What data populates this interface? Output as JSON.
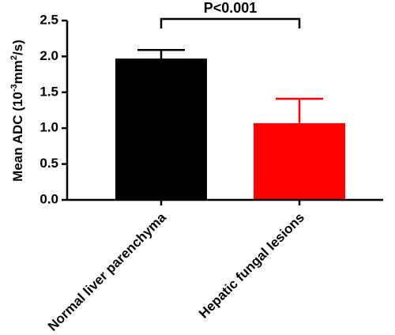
{
  "chart_data": {
    "type": "bar",
    "title": "",
    "ylabel_parts": [
      "Mean ADC (10",
      "-3",
      "mm",
      "2",
      "/s)"
    ],
    "ylim": [
      0,
      2.5
    ],
    "yticks": [
      "0.0",
      "0.5",
      "1.0",
      "1.5",
      "2.0",
      "2.5"
    ],
    "ytick_values": [
      0,
      0.5,
      1.0,
      1.5,
      2.0,
      2.5
    ],
    "categories": [
      "Normal liver parenchyma",
      "Hepatic fungal lesions"
    ],
    "values": [
      1.97,
      1.07
    ],
    "error_upper": [
      2.09,
      1.41
    ],
    "colors": [
      "#000000",
      "#ff0000"
    ],
    "significance": "P<0.001"
  }
}
